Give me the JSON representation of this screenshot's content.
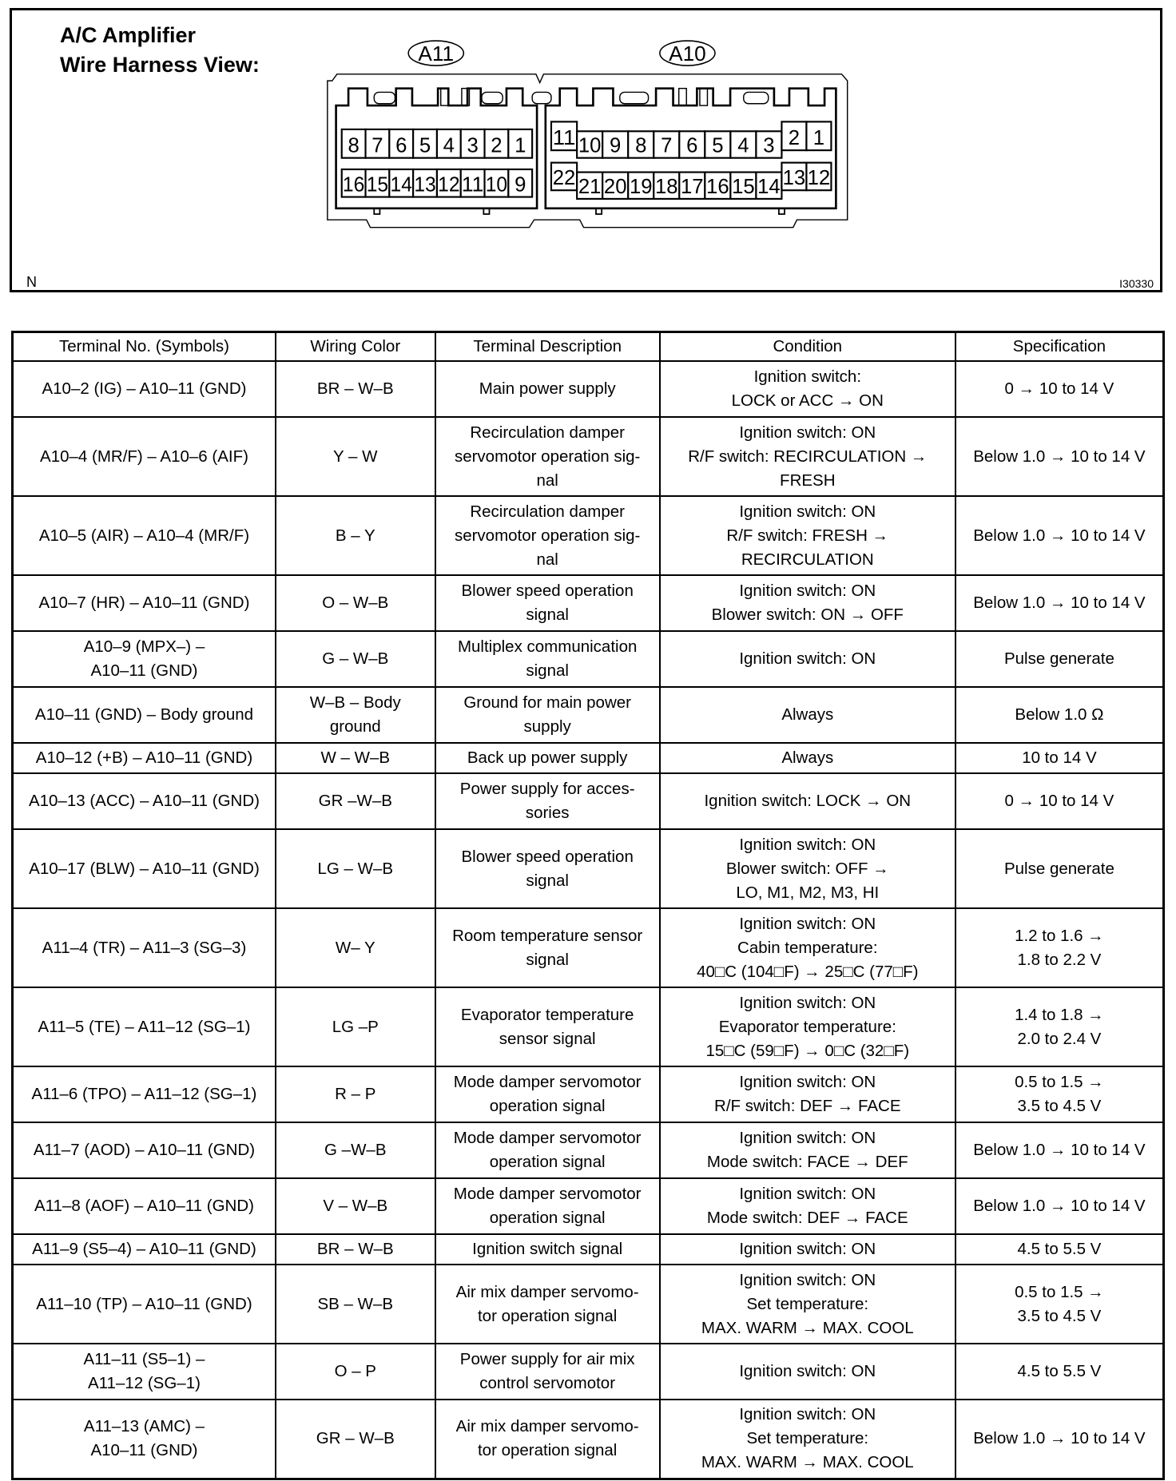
{
  "header": {
    "title_line1": "A/C Amplifier",
    "title_line2": "Wire Harness View:",
    "corner_label": "N",
    "figure_id": "I30330"
  },
  "connectors": {
    "A11": {
      "label": "A11",
      "top_row": [
        "8",
        "7",
        "6",
        "5",
        "4",
        "3",
        "2",
        "1"
      ],
      "bottom_row": [
        "16",
        "15",
        "14",
        "13",
        "12",
        "11",
        "10",
        "9"
      ]
    },
    "A10": {
      "label": "A10",
      "top_left": "11",
      "top_row": [
        "10",
        "9",
        "8",
        "7",
        "6",
        "5",
        "4",
        "3"
      ],
      "top_right": [
        "2",
        "1"
      ],
      "bottom_left": "22",
      "bottom_row": [
        "21",
        "20",
        "19",
        "18",
        "17",
        "16",
        "15",
        "14"
      ],
      "bottom_right": [
        "13",
        "12"
      ]
    }
  },
  "table": {
    "headers": [
      "Terminal No. (Symbols)",
      "Wiring Color",
      "Terminal Description",
      "Condition",
      "Specification"
    ],
    "rows": [
      [
        "A10–2 (IG) – A10–11 (GND)",
        "BR – W–B",
        "Main power supply",
        "Ignition switch:\nLOCK or ACC → ON",
        "0 → 10 to 14 V"
      ],
      [
        "A10–4 (MR/F) – A10–6 (AIF)",
        "Y – W",
        "Recirculation damper\nservomotor operation sig-\nnal",
        "Ignition switch: ON\nR/F switch: RECIRCULATION →\nFRESH",
        "Below 1.0 → 10 to 14 V"
      ],
      [
        "A10–5 (AIR) – A10–4 (MR/F)",
        "B – Y",
        "Recirculation damper\nservomotor operation sig-\nnal",
        "Ignition switch: ON\nR/F switch: FRESH →\nRECIRCULATION",
        "Below 1.0 → 10 to 14 V"
      ],
      [
        "A10–7 (HR) – A10–11 (GND)",
        "O – W–B",
        "Blower speed operation\nsignal",
        "Ignition switch: ON\nBlower switch: ON → OFF",
        "Below 1.0 → 10 to 14 V"
      ],
      [
        "A10–9 (MPX–) –\nA10–11 (GND)",
        "G – W–B",
        "Multiplex communication\nsignal",
        "Ignition switch: ON",
        "Pulse generate"
      ],
      [
        "A10–11 (GND) – Body ground",
        "W–B – Body\nground",
        "Ground for main power\nsupply",
        "Always",
        "Below 1.0 Ω"
      ],
      [
        "A10–12 (+B) – A10–11 (GND)",
        "W – W–B",
        "Back up power supply",
        "Always",
        "10 to 14 V"
      ],
      [
        "A10–13 (ACC) – A10–11 (GND)",
        "GR –W–B",
        "Power supply for acces-\nsories",
        "Ignition switch: LOCK → ON",
        "0 → 10 to 14 V"
      ],
      [
        "A10–17 (BLW) – A10–11 (GND)",
        "LG – W–B",
        "Blower speed operation\nsignal",
        "Ignition switch: ON\nBlower switch: OFF →\nLO, M1, M2, M3, HI",
        "Pulse generate"
      ],
      [
        "A11–4 (TR) – A11–3 (SG–3)",
        "W– Y",
        "Room temperature sensor\nsignal",
        "Ignition switch: ON\nCabin temperature:\n40□C (104□F) → 25□C (77□F)",
        "1.2 to 1.6 →\n1.8 to 2.2 V"
      ],
      [
        "A11–5 (TE) – A11–12 (SG–1)",
        "LG –P",
        "Evaporator temperature\nsensor signal",
        "Ignition switch: ON\nEvaporator temperature:\n15□C (59□F) → 0□C (32□F)",
        "1.4 to 1.8 →\n2.0 to 2.4 V"
      ],
      [
        "A11–6 (TPO) – A11–12 (SG–1)",
        "R – P",
        "Mode damper servomotor\noperation signal",
        "Ignition switch: ON\nR/F switch: DEF → FACE",
        "0.5 to 1.5 →\n3.5 to 4.5 V"
      ],
      [
        "A11–7 (AOD) – A10–11 (GND)",
        "G –W–B",
        "Mode damper servomotor\noperation signal",
        "Ignition switch: ON\nMode switch: FACE → DEF",
        "Below 1.0 → 10 to 14 V"
      ],
      [
        "A11–8 (AOF) – A10–11 (GND)",
        "V – W–B",
        "Mode damper servomotor\noperation signal",
        "Ignition switch: ON\nMode switch: DEF → FACE",
        "Below 1.0 → 10 to 14 V"
      ],
      [
        "A11–9 (S5–4) – A10–11 (GND)",
        "BR – W–B",
        "Ignition switch signal",
        "Ignition switch: ON",
        "4.5 to 5.5 V"
      ],
      [
        "A11–10 (TP) – A10–11 (GND)",
        "SB – W–B",
        "Air mix damper servomo-\ntor operation signal",
        "Ignition switch: ON\nSet temperature:\nMAX. WARM → MAX. COOL",
        "0.5 to 1.5 →\n3.5 to 4.5 V"
      ],
      [
        "A11–11 (S5–1) –\nA11–12 (SG–1)",
        "O – P",
        "Power supply for air mix\ncontrol servomotor",
        "Ignition switch: ON",
        "4.5 to 5.5 V"
      ],
      [
        "A11–13 (AMC) –\nA10–11 (GND)",
        "GR – W–B",
        "Air mix damper servomo-\ntor operation signal",
        "Ignition switch: ON\nSet temperature:\nMAX. WARM → MAX. COOL",
        "Below 1.0 → 10 to 14 V"
      ]
    ]
  }
}
